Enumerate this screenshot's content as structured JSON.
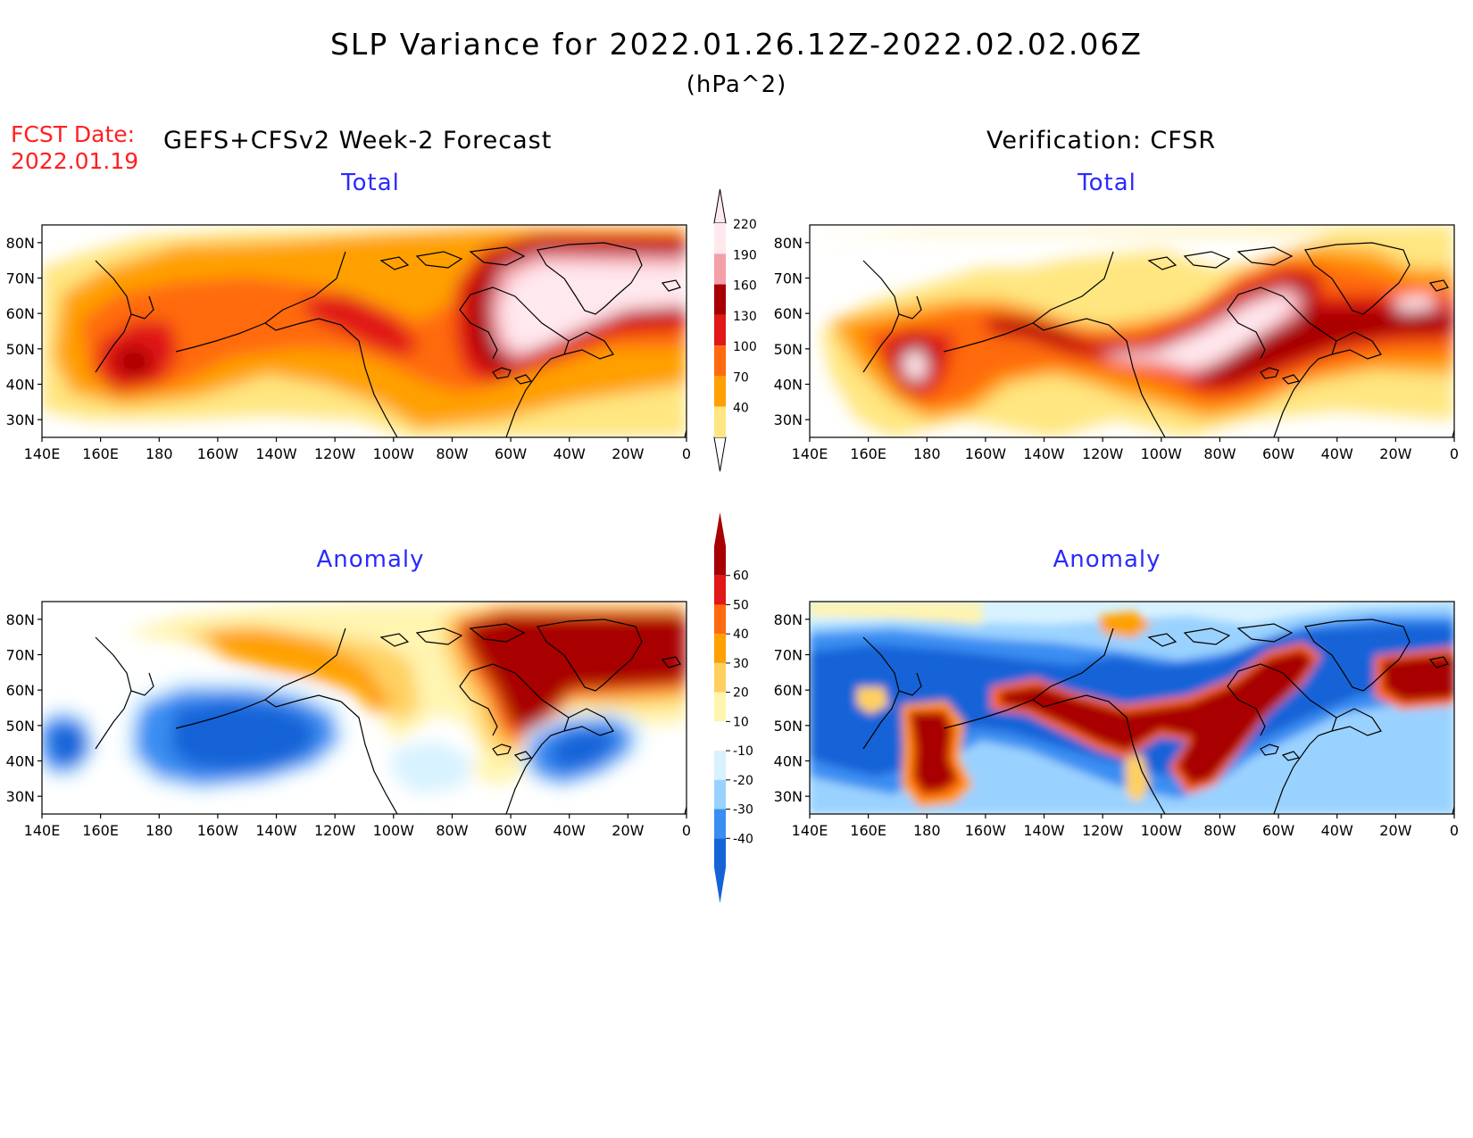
{
  "header": {
    "title": "SLP Variance for 2022.01.26.12Z-2022.02.02.06Z",
    "units": "(hPa^2)",
    "fcst_label": "FCST Date:",
    "fcst_date": "2022.01.19",
    "forecast_heading": "GEFS+CFSv2 Week-2 Forecast",
    "verification_heading": "Verification: CFSR"
  },
  "panels": [
    {
      "title": "Total"
    },
    {
      "title": "Total"
    },
    {
      "title": "Anomaly"
    },
    {
      "title": "Anomaly"
    }
  ],
  "axes": {
    "lon_labels": [
      "140E",
      "160E",
      "180",
      "160W",
      "140W",
      "120W",
      "100W",
      "80W",
      "60W",
      "40W",
      "20W",
      "0"
    ],
    "lat_labels": [
      "80N",
      "70N",
      "60N",
      "50N",
      "40N",
      "30N"
    ]
  },
  "colorbars": {
    "total": {
      "labels": [
        "220",
        "190",
        "160",
        "130",
        "100",
        "70",
        "40"
      ],
      "colors": [
        "#ffe8ee",
        "#f4a0a8",
        "#a80000",
        "#e01818",
        "#ff6a10",
        "#ffa000",
        "#ffe680"
      ]
    },
    "anomaly": {
      "labels": [
        "60",
        "50",
        "40",
        "30",
        "20",
        "10",
        "-10",
        "-20",
        "-30",
        "-40"
      ],
      "colors": [
        "#a80000",
        "#e01818",
        "#ff6a10",
        "#ffa000",
        "#ffd060",
        "#fff4b0",
        "#ffffff",
        "#d8f2ff",
        "#9ad2ff",
        "#3a8ef2",
        "#1464d8"
      ]
    }
  }
}
